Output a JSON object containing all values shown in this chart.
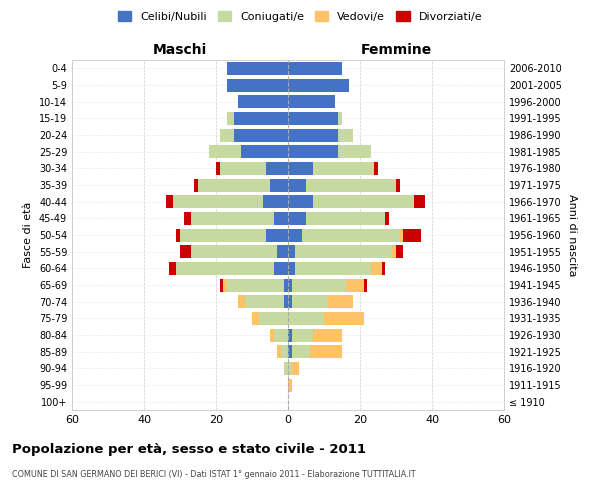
{
  "age_groups": [
    "100+",
    "95-99",
    "90-94",
    "85-89",
    "80-84",
    "75-79",
    "70-74",
    "65-69",
    "60-64",
    "55-59",
    "50-54",
    "45-49",
    "40-44",
    "35-39",
    "30-34",
    "25-29",
    "20-24",
    "15-19",
    "10-14",
    "5-9",
    "0-4"
  ],
  "birth_years": [
    "≤ 1910",
    "1911-1915",
    "1916-1920",
    "1921-1925",
    "1926-1930",
    "1931-1935",
    "1936-1940",
    "1941-1945",
    "1946-1950",
    "1951-1955",
    "1956-1960",
    "1961-1965",
    "1966-1970",
    "1971-1975",
    "1976-1980",
    "1981-1985",
    "1986-1990",
    "1991-1995",
    "1996-2000",
    "2001-2005",
    "2006-2010"
  ],
  "colors": {
    "celibi": "#4472c4",
    "coniugati": "#c5d9a0",
    "vedovi": "#ffc266",
    "divorziati": "#cc0000"
  },
  "maschi": {
    "celibi": [
      0,
      0,
      0,
      0,
      0,
      0,
      1,
      1,
      4,
      3,
      6,
      4,
      7,
      5,
      6,
      13,
      15,
      15,
      14,
      17,
      17
    ],
    "coniugati": [
      0,
      0,
      1,
      2,
      4,
      8,
      11,
      16,
      27,
      24,
      24,
      23,
      25,
      20,
      13,
      9,
      4,
      2,
      0,
      0,
      0
    ],
    "vedovi": [
      0,
      0,
      0,
      1,
      1,
      2,
      2,
      1,
      0,
      0,
      0,
      0,
      0,
      0,
      0,
      0,
      0,
      0,
      0,
      0,
      0
    ],
    "divorziati": [
      0,
      0,
      0,
      0,
      0,
      0,
      0,
      1,
      2,
      3,
      1,
      2,
      2,
      1,
      1,
      0,
      0,
      0,
      0,
      0,
      0
    ]
  },
  "femmine": {
    "celibi": [
      0,
      0,
      0,
      1,
      1,
      0,
      1,
      1,
      2,
      2,
      4,
      5,
      7,
      5,
      7,
      14,
      14,
      14,
      13,
      17,
      15
    ],
    "coniugati": [
      0,
      0,
      1,
      5,
      6,
      10,
      10,
      15,
      21,
      27,
      27,
      22,
      28,
      25,
      17,
      9,
      4,
      1,
      0,
      0,
      0
    ],
    "vedovi": [
      0,
      1,
      2,
      9,
      8,
      11,
      7,
      5,
      3,
      1,
      1,
      0,
      0,
      0,
      0,
      0,
      0,
      0,
      0,
      0,
      0
    ],
    "divorziati": [
      0,
      0,
      0,
      0,
      0,
      0,
      0,
      1,
      1,
      2,
      5,
      1,
      3,
      1,
      1,
      0,
      0,
      0,
      0,
      0,
      0
    ]
  },
  "title": "Popolazione per età, sesso e stato civile - 2011",
  "subtitle": "COMUNE DI SAN GERMANO DEI BERICI (VI) - Dati ISTAT 1° gennaio 2011 - Elaborazione TUTTITALIA.IT",
  "xlabel_left": "Maschi",
  "xlabel_right": "Femmine",
  "ylabel_left": "Fasce di età",
  "ylabel_right": "Anni di nascita",
  "xlim": 60,
  "legend_labels": [
    "Celibi/Nubili",
    "Coniugati/e",
    "Vedovi/e",
    "Divorziati/e"
  ],
  "background_color": "#ffffff",
  "grid_color": "#cccccc"
}
